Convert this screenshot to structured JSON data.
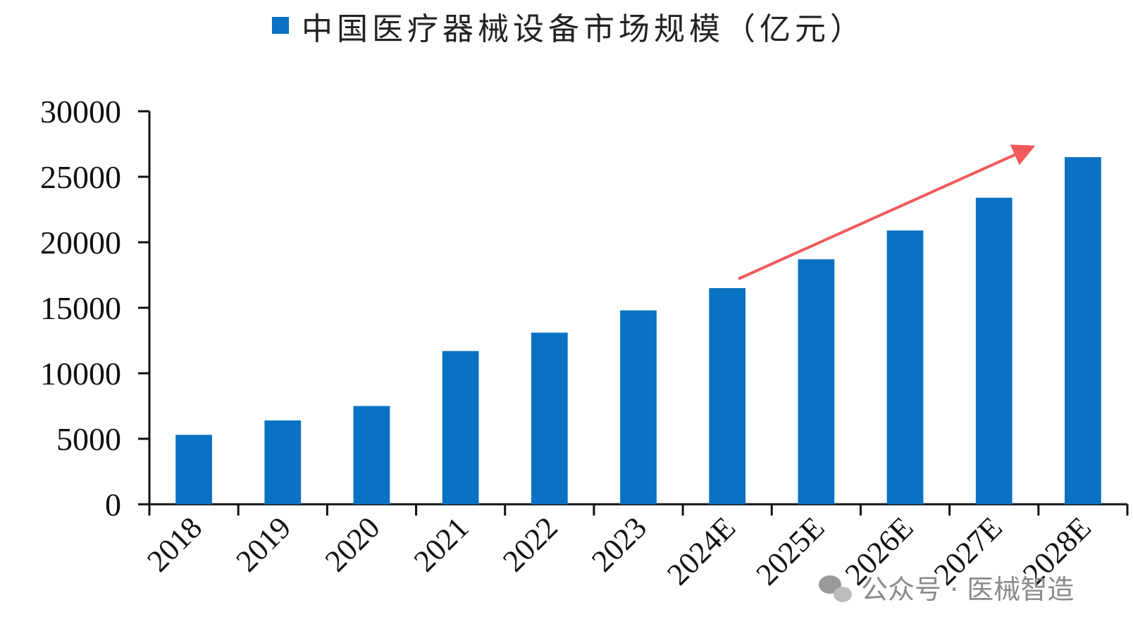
{
  "chart_data": {
    "type": "bar",
    "legend_label": "中国医疗器械设备市场规模（亿元）",
    "legend_position": "top",
    "categories": [
      "2018",
      "2019",
      "2020",
      "2021",
      "2022",
      "2023",
      "2024E",
      "2025E",
      "2026E",
      "2027E",
      "2028E"
    ],
    "series": [
      {
        "name": "中国医疗器械设备市场规模（亿元）",
        "values": [
          5300,
          6400,
          7500,
          11700,
          13100,
          14800,
          16500,
          18700,
          20900,
          23400,
          26500
        ]
      }
    ],
    "ylim": [
      0,
      30000
    ],
    "yticks": [
      "0",
      "5000",
      "10000",
      "15000",
      "20000",
      "25000",
      "30000"
    ],
    "grid": false,
    "bar_color": "#0a72c3",
    "trend_arrow_color": "#f05a5a"
  },
  "watermark": {
    "icon": "wechat-icon",
    "text": "公众号 · 医械智造"
  }
}
